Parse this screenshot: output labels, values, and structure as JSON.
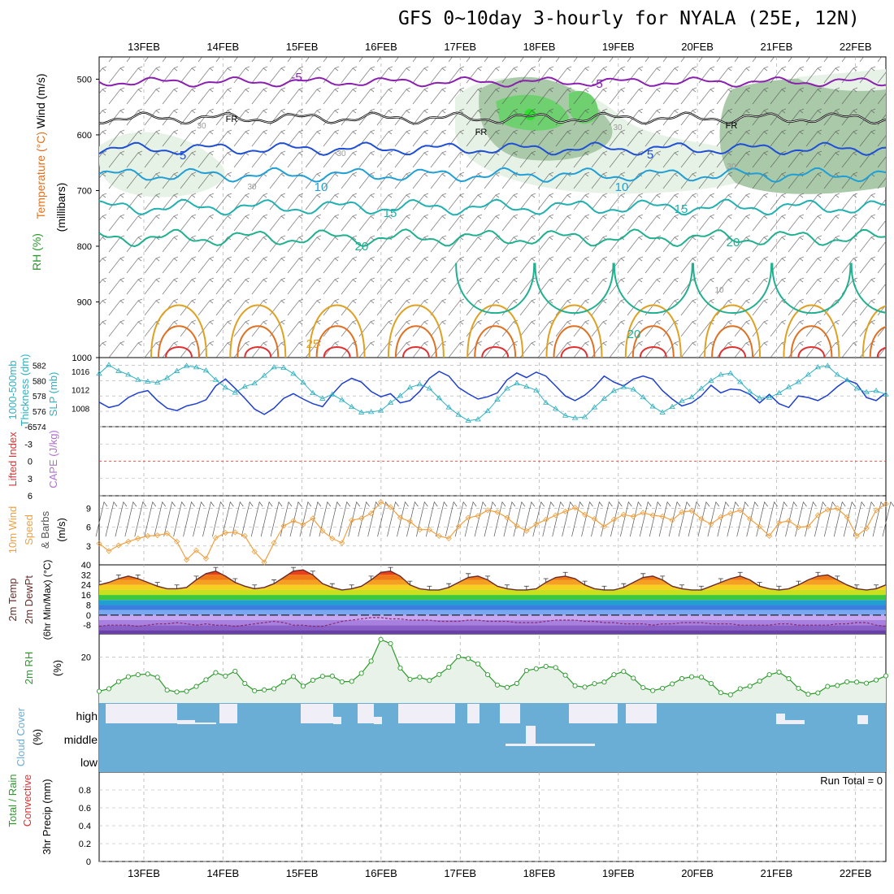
{
  "title": "GFS 0~10day 3-hourly for NYALA (25E, 12N)",
  "colors": {
    "grid": "#aaaaaa",
    "freezing": "#000000",
    "temp_5": "#8a1fb0",
    "temp_ge5": "#1f4fd6",
    "temp_10": "#1f9fd6",
    "temp_15": "#20b0b0",
    "temp_20": "#20b090",
    "temp_25": "#e0a020",
    "temp_30": "#e07020",
    "temp_35": "#e03030",
    "rh_light": "#e6f2e6",
    "rh_mid": "#a9c9a9",
    "rh_high": "#6fd06f",
    "thickness": "#1f3fcf",
    "slp": "#30b0c0",
    "lifted_zero": "#e03030",
    "wind10m": "#f0a040",
    "temp_curve": "#6b2a2a",
    "dewpt_curve": "#8a2a6a",
    "rh2m": "#2a9a2a",
    "rh2m_fill": "#e8f2e8",
    "cloud": "#6aaed6",
    "cloud_clear": "#f0eef6"
  },
  "chart_data": [
    {
      "name": "upper-air",
      "type": "heatmap",
      "ylabel_parts": [
        "Wind (m/s)",
        "Temperature (°C)",
        "RH (%)",
        "(millibars)"
      ],
      "y_ticks": [
        "500",
        "600",
        "700",
        "800",
        "900",
        "1000"
      ],
      "ylim": [
        460,
        1000
      ],
      "x_dates": [
        "13FEB",
        "14FEB",
        "15FEB",
        "16FEB",
        "17FEB",
        "18FEB",
        "19FEB",
        "20FEB",
        "21FEB",
        "22FEB"
      ],
      "contour_labels": [
        "-5",
        "-5",
        "FR",
        "FR",
        "FR",
        "5",
        "5",
        "10",
        "10",
        "15",
        "15",
        "20",
        "20",
        "20",
        "25",
        "30",
        "30",
        "30",
        "30",
        "30",
        "10"
      ],
      "levels": [
        {
          "label": "-5",
          "level_mb": 505
        },
        {
          "label": "FR",
          "level_mb": 570
        },
        {
          "label": "5",
          "level_mb": 625
        },
        {
          "label": "10",
          "level_mb": 672
        },
        {
          "label": "15",
          "level_mb": 730
        },
        {
          "label": "20",
          "level_mb": 785
        }
      ]
    },
    {
      "name": "thickness-slp",
      "type": "line",
      "ylabel_parts": [
        "1000-500mb",
        "Thickness (dm)",
        "SLP (mb)"
      ],
      "left_ticks": [
        "582",
        "580",
        "578",
        "576",
        "574"
      ],
      "right_ticks": [
        "1016",
        "1012",
        "1008"
      ],
      "thickness_ylim": [
        574,
        583
      ],
      "slp_ylim": [
        1004,
        1019
      ],
      "series": [
        {
          "name": "Thickness",
          "values": [
            577.2,
            576.5,
            576.8,
            577.8,
            578.4,
            578.7,
            577.4,
            576.4,
            576.1,
            576.7,
            577.0,
            577.5,
            579.3,
            580.2,
            579.0,
            577.7,
            576.3,
            575.6,
            576.4,
            577.7,
            578.3,
            577.6,
            577.0,
            576.6,
            578.2,
            579.6,
            580.3,
            579.8,
            578.6,
            577.9,
            578.3,
            577.1,
            577.4,
            578.6,
            580.3,
            581.2,
            580.6,
            579.1,
            578.3,
            577.6,
            577.9,
            578.4,
            580.1,
            581.0,
            580.4,
            581.1,
            580.6,
            579.3,
            578.0,
            577.4,
            578.1,
            579.2,
            580.6,
            579.8,
            579.3,
            580.2,
            580.6,
            580.2,
            578.7,
            577.6,
            576.7,
            577.1,
            578.0,
            579.4,
            578.4,
            578.9,
            578.8,
            578.2,
            577.1,
            578.2,
            577.0,
            576.5,
            578.0,
            577.8,
            577.4,
            578.1,
            579.2,
            580.1,
            579.6,
            577.8,
            577.4,
            578.4
          ]
        },
        {
          "name": "SLP",
          "values": [
            1015.5,
            1017.4,
            1016.1,
            1015.3,
            1014.2,
            1013.8,
            1013.6,
            1014.6,
            1016.1,
            1017.2,
            1016.9,
            1016.2,
            1014.2,
            1012.5,
            1011.4,
            1012.7,
            1013.4,
            1015.1,
            1016.9,
            1016.8,
            1015.5,
            1013.6,
            1011.3,
            1010.1,
            1011.0,
            1009.8,
            1008.3,
            1007.1,
            1007.2,
            1007.5,
            1009.2,
            1010.7,
            1012.5,
            1013.2,
            1012.3,
            1010.2,
            1008.2,
            1006.6,
            1005.3,
            1005.6,
            1007.4,
            1009.9,
            1012.3,
            1013.4,
            1012.7,
            1011.9,
            1009.2,
            1007.9,
            1006.4,
            1005.9,
            1006.1,
            1008.2,
            1010.1,
            1011.8,
            1012.6,
            1012.1,
            1010.4,
            1008.4,
            1007.1,
            1008.3,
            1009.6,
            1010.4,
            1012.3,
            1014.0,
            1015.3,
            1015.6,
            1013.7,
            1011.6,
            1010.2,
            1010.3,
            1011.3,
            1012.6,
            1013.7,
            1015.3,
            1016.9,
            1017.2,
            1015.3,
            1014.1,
            1012.3,
            1011.5,
            1011.8,
            1011.0
          ]
        }
      ]
    },
    {
      "name": "cape-lifted",
      "type": "line",
      "ylabel_parts": [
        "Lifted Index",
        "CAPE (J/kg)"
      ],
      "y_ticks": [
        "-6",
        "-3",
        "0",
        "3",
        "6"
      ],
      "ylim": [
        -6,
        6
      ],
      "lifted_zero": 0
    },
    {
      "name": "wind10m",
      "type": "line",
      "ylabel_parts": [
        "10m Wind",
        "Speed",
        "& Barbs",
        "(m/s)"
      ],
      "y_ticks": [
        "3",
        "6",
        "9"
      ],
      "ylim": [
        0,
        11
      ],
      "series": [
        {
          "name": "Speed",
          "values": [
            3.4,
            2.2,
            3.1,
            3.7,
            4.2,
            4.6,
            4.7,
            5.0,
            3.7,
            0.8,
            2.3,
            1.0,
            4.3,
            5.1,
            5.2,
            4.6,
            2.1,
            0.4,
            3.5,
            6.2,
            7.0,
            6.4,
            7.4,
            5.4,
            4.2,
            3.5,
            7.1,
            7.4,
            8.2,
            10.0,
            9.2,
            7.5,
            6.9,
            5.6,
            5.6,
            4.6,
            4.2,
            6.1,
            7.5,
            7.8,
            8.7,
            8.4,
            7.5,
            6.2,
            5.4,
            6.5,
            7.2,
            7.9,
            8.5,
            9.1,
            8.0,
            7.3,
            6.1,
            7.2,
            8.0,
            7.7,
            8.3,
            7.9,
            7.7,
            7.1,
            8.4,
            8.6,
            7.3,
            6.5,
            7.6,
            8.2,
            8.7,
            7.3,
            6.1,
            4.6,
            6.7,
            7.0,
            6.0,
            6.1,
            7.9,
            8.8,
            9.0,
            7.6,
            4.6,
            5.8,
            8.7,
            9.7
          ]
        }
      ]
    },
    {
      "name": "temp2m",
      "type": "area",
      "ylabel_parts": [
        "2m Temp",
        "2m DewPt",
        "(6hr Min/Max) (°C)"
      ],
      "y_ticks": [
        "40",
        "32",
        "24",
        "16",
        "8",
        "0",
        "-8"
      ],
      "ylim": [
        -15,
        40
      ],
      "series": [
        {
          "name": "2m Temp",
          "values": [
            24,
            26,
            29,
            31,
            29,
            26,
            23,
            21,
            21,
            22,
            28,
            33,
            35,
            31,
            26,
            23,
            21,
            22,
            25,
            30,
            35,
            36,
            32,
            25,
            22,
            20,
            21,
            23,
            28,
            34,
            35,
            31,
            24,
            21,
            20,
            20,
            22,
            26,
            30,
            31,
            28,
            23,
            21,
            20,
            20,
            21,
            26,
            30,
            31,
            29,
            24,
            21,
            20,
            20,
            22,
            26,
            30,
            31,
            28,
            23,
            21,
            20,
            20,
            23,
            26,
            29,
            31,
            28,
            23,
            21,
            20,
            21,
            24,
            28,
            31,
            32,
            28,
            24,
            21,
            20,
            21,
            24
          ]
        },
        {
          "name": "2m DewPt",
          "values": [
            -9,
            -8,
            -8,
            -8,
            -9,
            -8,
            -7,
            -7,
            -6,
            -7,
            -8,
            -7,
            -8,
            -8,
            -9,
            -8,
            -7,
            -6,
            -5,
            -6,
            -8,
            -8,
            -9,
            -9,
            -7,
            -5,
            -4,
            -3,
            -2,
            -2,
            -3,
            -3,
            -4,
            -4,
            -4,
            -5,
            -5,
            -5,
            -4,
            -4,
            -5,
            -5,
            -5,
            -6,
            -6,
            -6,
            -5,
            -4,
            -4,
            -4,
            -5,
            -5,
            -6,
            -6,
            -7,
            -7,
            -7,
            -8,
            -7,
            -7,
            -6,
            -6,
            -6,
            -7,
            -7,
            -7,
            -8,
            -8,
            -8,
            -8,
            -7,
            -7,
            -8,
            -8,
            -8,
            -8,
            -7,
            -7,
            -6,
            -6,
            -8,
            -9
          ]
        }
      ]
    },
    {
      "name": "rh2m",
      "type": "area",
      "ylabel_parts": [
        "2m RH",
        "(%)"
      ],
      "y_ticks": [
        "20"
      ],
      "ylim": [
        0,
        30
      ],
      "series": [
        {
          "name": "2m RH",
          "values": [
            5.1,
            6.2,
            9.3,
            11.4,
            12.3,
            12.6,
            11.2,
            5.6,
            4.8,
            5.1,
            7.2,
            10.1,
            13.2,
            11.7,
            13.8,
            8.5,
            5.3,
            5.7,
            6.2,
            9.1,
            11.5,
            7.3,
            9.9,
            11.6,
            11.7,
            9.2,
            9.4,
            12.9,
            18.2,
            27.6,
            25.8,
            15.2,
            10.3,
            11.2,
            9.8,
            12.4,
            15.5,
            20.1,
            19.3,
            17.0,
            12.3,
            7.8,
            6.8,
            8.5,
            14.1,
            14.9,
            15.9,
            15.4,
            12.1,
            7.5,
            6.9,
            8.4,
            9.1,
            12.3,
            13.7,
            10.8,
            6.7,
            5.4,
            6.4,
            8.3,
            10.6,
            11.4,
            11.2,
            8.5,
            4.5,
            3.6,
            6.2,
            7.3,
            9.5,
            12.3,
            13.4,
            10.6,
            6.4,
            3.8,
            4.4,
            7.2,
            7.6,
            9.2,
            9.1,
            8.6,
            10.0,
            11.8
          ]
        }
      ]
    },
    {
      "name": "cloud",
      "type": "heatmap",
      "ylabel_parts": [
        "Cloud Cover",
        "(%)"
      ],
      "y_ticks": [
        "high",
        "middle",
        "low"
      ],
      "note": "solid cloud cover in low and middle layers; intermittent high-level cloud"
    },
    {
      "name": "precip",
      "type": "bar",
      "ylabel_parts": [
        "Total / Rain",
        "Convective",
        "3hr Precip (mm)"
      ],
      "y_ticks": [
        "0",
        "0.2",
        "0.4",
        "0.6",
        "0.8"
      ],
      "ylim": [
        0,
        1
      ],
      "run_total_label": "Run Total = 0",
      "values": []
    }
  ]
}
